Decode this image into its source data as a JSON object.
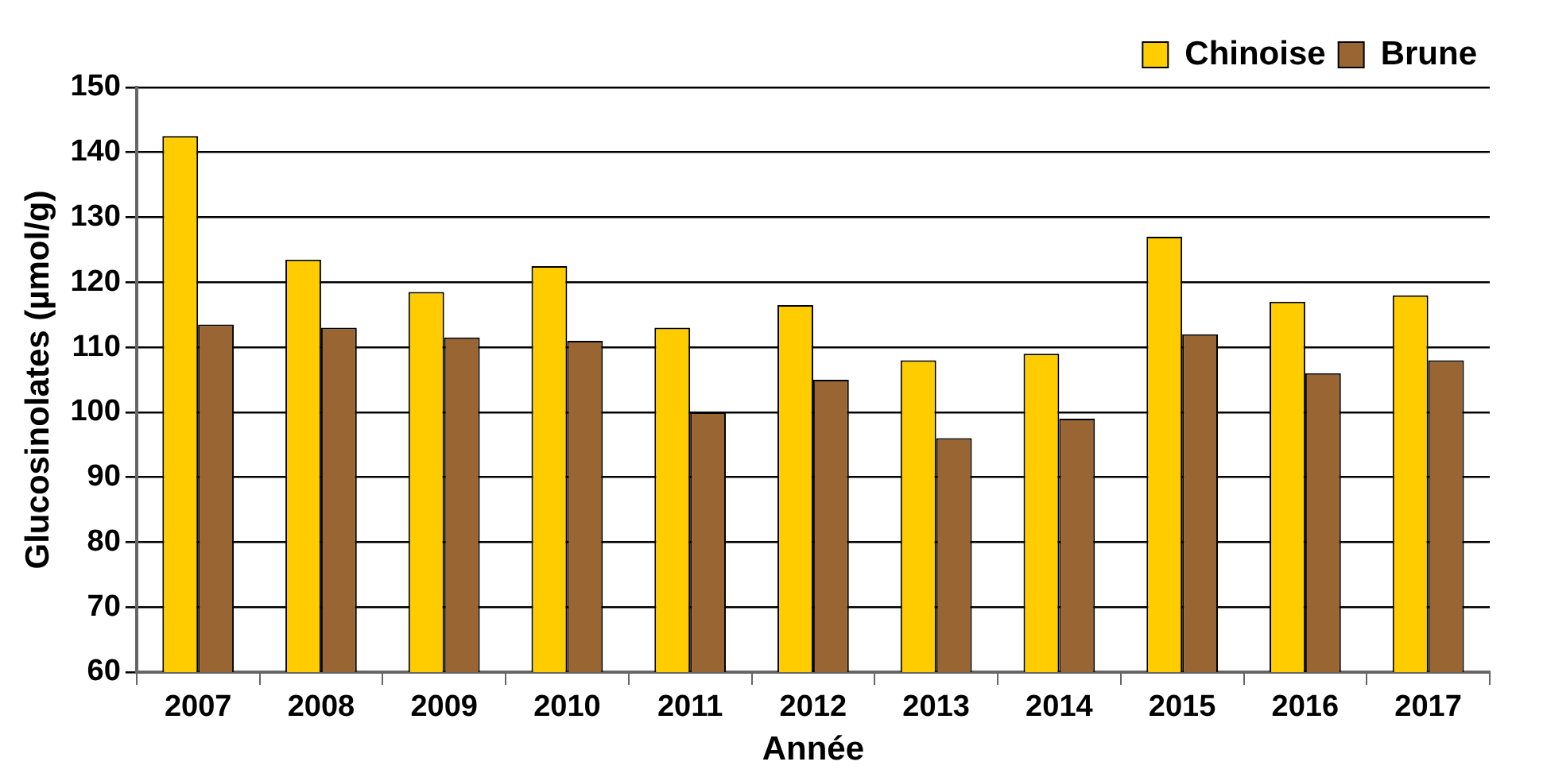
{
  "chart_data": {
    "type": "bar",
    "xlabel": "Année",
    "ylabel": "Glucosinolates (µmol/g)",
    "categories": [
      "2007",
      "2008",
      "2009",
      "2010",
      "2011",
      "2012",
      "2013",
      "2014",
      "2015",
      "2016",
      "2017"
    ],
    "series": [
      {
        "name": "Chinoise",
        "color": "#ffcc00",
        "values": [
          142.5,
          123.5,
          118.5,
          122.5,
          113,
          116.5,
          108,
          109,
          127,
          117,
          118
        ]
      },
      {
        "name": "Brune",
        "color": "#996633",
        "values": [
          113.5,
          113,
          111.5,
          111,
          100,
          105,
          96,
          99,
          112,
          106,
          108
        ]
      }
    ],
    "ylim": [
      60,
      150
    ],
    "yticks": [
      60,
      70,
      80,
      90,
      100,
      110,
      120,
      130,
      140,
      150
    ],
    "grid": "y",
    "legend": "top right"
  }
}
